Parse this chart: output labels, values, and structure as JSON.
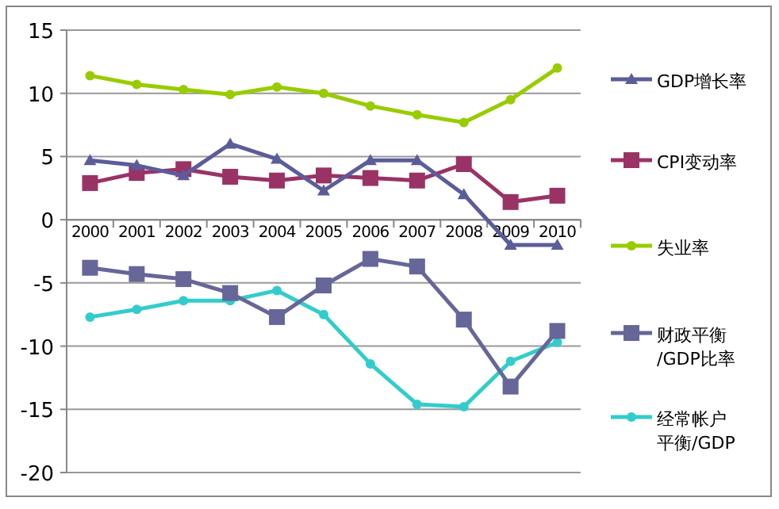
{
  "chart_data": {
    "type": "line",
    "categories": [
      "2000",
      "2001",
      "2002",
      "2003",
      "2004",
      "2005",
      "2006",
      "2007",
      "2008",
      "2009",
      "2010"
    ],
    "ylim": [
      -20,
      15
    ],
    "yticks": [
      -20,
      -15,
      -10,
      -5,
      0,
      5,
      10,
      15
    ],
    "grid": "y",
    "legend": "right",
    "series": [
      {
        "name": "GDP增长率",
        "color": "#5c5c99",
        "marker": "triangle",
        "values": [
          4.7,
          4.3,
          3.5,
          6.0,
          4.8,
          2.3,
          4.7,
          4.7,
          2.0,
          -2.0,
          -2.0
        ]
      },
      {
        "name": "CPI变动率",
        "color": "#993366",
        "marker": "square",
        "values": [
          2.9,
          3.7,
          4.0,
          3.4,
          3.1,
          3.5,
          3.3,
          3.1,
          4.4,
          1.4,
          1.9
        ]
      },
      {
        "name": "失业率",
        "color": "#99cc00",
        "marker": "circle",
        "values": [
          11.4,
          10.7,
          10.3,
          9.9,
          10.5,
          10.0,
          9.0,
          8.3,
          7.7,
          9.5,
          12.0
        ]
      },
      {
        "name": "财政平衡/GDP比率",
        "color": "#666699",
        "marker": "square",
        "values": [
          -3.8,
          -4.3,
          -4.7,
          -5.8,
          -7.7,
          -5.2,
          -3.1,
          -3.7,
          -7.9,
          -13.2,
          -8.8
        ]
      },
      {
        "name": "经常帐户平衡/GDP",
        "color": "#33cccc",
        "marker": "circle",
        "values": [
          -7.7,
          -7.1,
          -6.4,
          -6.4,
          -5.6,
          -7.5,
          -11.4,
          -14.6,
          -14.8,
          -11.2,
          -9.7
        ]
      }
    ]
  }
}
